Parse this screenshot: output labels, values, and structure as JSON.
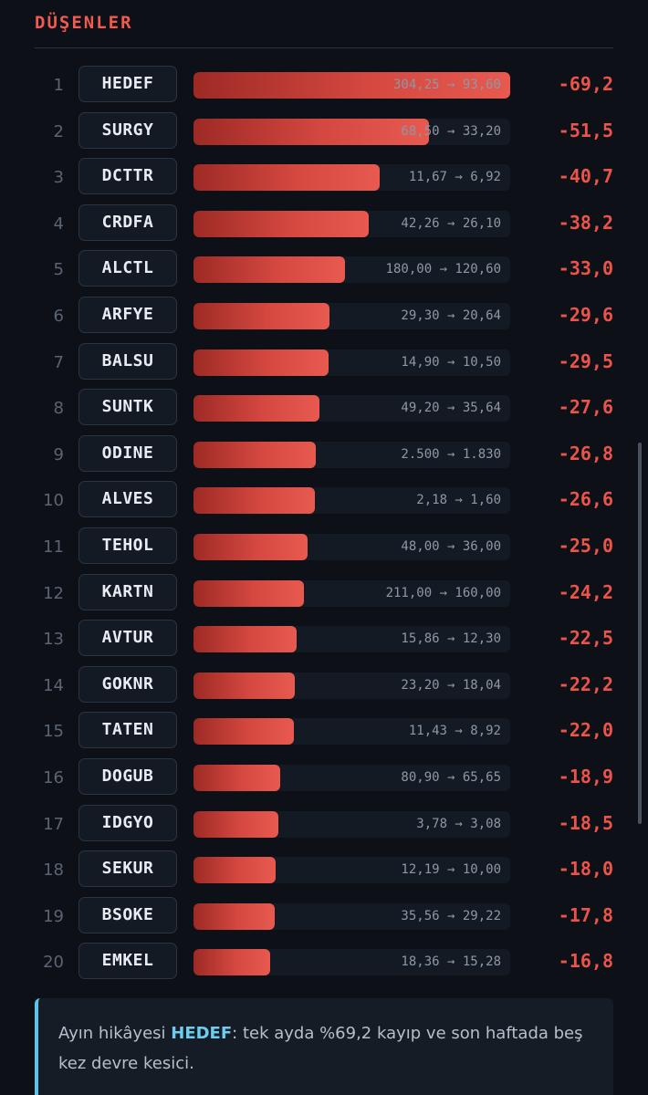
{
  "section": {
    "title": "DÜŞENLER"
  },
  "rows": [
    {
      "rank": "1",
      "ticker": "HEDEF",
      "range": "304,25 → 93,60",
      "change": "-69,2",
      "bar": 1.0
    },
    {
      "rank": "2",
      "ticker": "SURGY",
      "range": "68,50 → 33,20",
      "change": "-51,5",
      "bar": 0.744
    },
    {
      "rank": "3",
      "ticker": "DCTTR",
      "range": "11,67 → 6,92",
      "change": "-40,7",
      "bar": 0.588
    },
    {
      "rank": "4",
      "ticker": "CRDFA",
      "range": "42,26 → 26,10",
      "change": "-38,2",
      "bar": 0.552
    },
    {
      "rank": "5",
      "ticker": "ALCTL",
      "range": "180,00 → 120,60",
      "change": "-33,0",
      "bar": 0.477
    },
    {
      "rank": "6",
      "ticker": "ARFYE",
      "range": "29,30 → 20,64",
      "change": "-29,6",
      "bar": 0.428
    },
    {
      "rank": "7",
      "ticker": "BALSU",
      "range": "14,90 → 10,50",
      "change": "-29,5",
      "bar": 0.426
    },
    {
      "rank": "8",
      "ticker": "SUNTK",
      "range": "49,20 → 35,64",
      "change": "-27,6",
      "bar": 0.399
    },
    {
      "rank": "9",
      "ticker": "ODINE",
      "range": "2.500 → 1.830",
      "change": "-26,8",
      "bar": 0.387
    },
    {
      "rank": "10",
      "ticker": "ALVES",
      "range": "2,18 → 1,60",
      "change": "-26,6",
      "bar": 0.384
    },
    {
      "rank": "11",
      "ticker": "TEHOL",
      "range": "48,00 → 36,00",
      "change": "-25,0",
      "bar": 0.361
    },
    {
      "rank": "12",
      "ticker": "KARTN",
      "range": "211,00 → 160,00",
      "change": "-24,2",
      "bar": 0.35
    },
    {
      "rank": "13",
      "ticker": "AVTUR",
      "range": "15,86 → 12,30",
      "change": "-22,5",
      "bar": 0.325
    },
    {
      "rank": "14",
      "ticker": "GOKNR",
      "range": "23,20 → 18,04",
      "change": "-22,2",
      "bar": 0.321
    },
    {
      "rank": "15",
      "ticker": "TATEN",
      "range": "11,43 → 8,92",
      "change": "-22,0",
      "bar": 0.318
    },
    {
      "rank": "16",
      "ticker": "DOGUB",
      "range": "80,90 → 65,65",
      "change": "-18,9",
      "bar": 0.273
    },
    {
      "rank": "17",
      "ticker": "IDGYO",
      "range": "3,78 → 3,08",
      "change": "-18,5",
      "bar": 0.267
    },
    {
      "rank": "18",
      "ticker": "SEKUR",
      "range": "12,19 → 10,00",
      "change": "-18,0",
      "bar": 0.26
    },
    {
      "rank": "19",
      "ticker": "BSOKE",
      "range": "35,56 → 29,22",
      "change": "-17,8",
      "bar": 0.257
    },
    {
      "rank": "20",
      "ticker": "EMKEL",
      "range": "18,36 → 15,28",
      "change": "-16,8",
      "bar": 0.243
    }
  ],
  "story": {
    "prefix": "Ayın hikâyesi ",
    "highlight": "HEDEF",
    "suffix": ": tek ayda %69,2 kayıp ve son haftada beş kez devre kesici."
  },
  "colors": {
    "accent_red": "#ec5449",
    "accent_blue": "#6ccdf0",
    "background": "#0d1117"
  }
}
